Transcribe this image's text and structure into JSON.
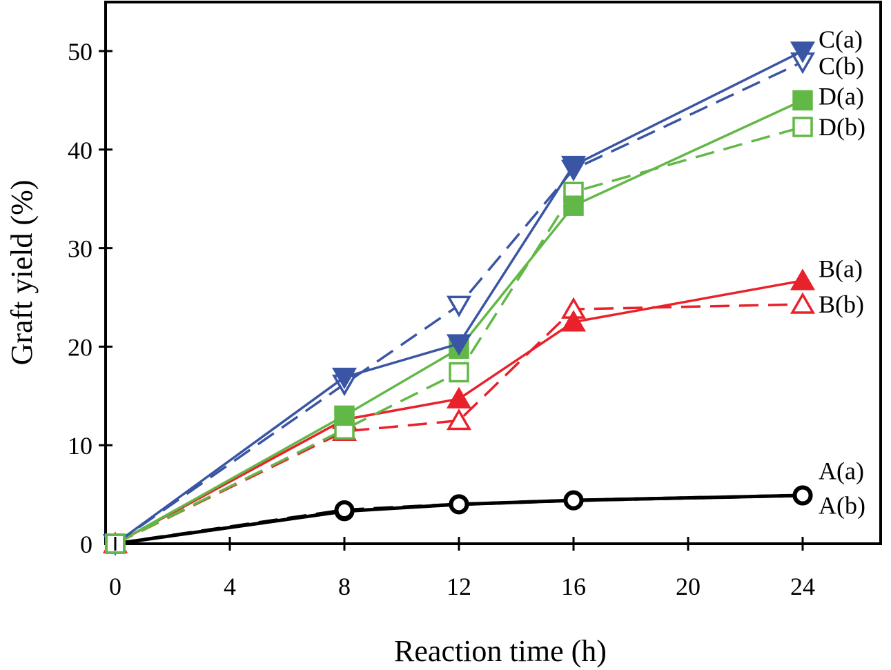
{
  "chart_data": {
    "type": "line",
    "title": "",
    "xlabel": "Reaction time (h)",
    "ylabel": "Graft yield (%)",
    "xlim": [
      -1,
      26.5
    ],
    "ylim": [
      0,
      55
    ],
    "xticks": [
      0,
      4,
      8,
      12,
      16,
      20,
      24
    ],
    "yticks": [
      0,
      10,
      20,
      30,
      40,
      50
    ],
    "grid": false,
    "legend": "inline labels at right end of each series",
    "x": [
      0,
      8,
      12,
      16,
      24
    ],
    "series": [
      {
        "name": "C(a)",
        "color": "#3a55a4",
        "dash": "solid",
        "marker": "triangle-down",
        "filled": true,
        "values": [
          0,
          16.9,
          20.3,
          38.4,
          50.0
        ]
      },
      {
        "name": "C(b)",
        "color": "#3a55a4",
        "dash": "dashed",
        "marker": "triangle-down",
        "filled": false,
        "values": [
          0,
          16.2,
          24.2,
          38.0,
          48.9
        ]
      },
      {
        "name": "D(a)",
        "color": "#62b847",
        "dash": "solid",
        "marker": "square",
        "filled": true,
        "values": [
          0,
          13.0,
          19.8,
          34.3,
          45.0
        ]
      },
      {
        "name": "D(b)",
        "color": "#62b847",
        "dash": "dashed",
        "marker": "square",
        "filled": false,
        "values": [
          0,
          11.6,
          17.4,
          35.7,
          42.3
        ]
      },
      {
        "name": "B(a)",
        "color": "#e8212a",
        "dash": "solid",
        "marker": "triangle-up",
        "filled": true,
        "values": [
          0,
          12.6,
          14.7,
          22.5,
          26.7
        ]
      },
      {
        "name": "B(b)",
        "color": "#e8212a",
        "dash": "dashed",
        "marker": "triangle-up",
        "filled": false,
        "values": [
          0,
          11.4,
          12.5,
          23.8,
          24.3
        ]
      },
      {
        "name": "A(a)",
        "color": "#000000",
        "dash": "solid",
        "marker": "circle",
        "filled": true,
        "values": [
          0,
          3.3,
          4.0,
          4.4,
          4.9
        ]
      },
      {
        "name": "A(b)",
        "color": "#000000",
        "dash": "dashed",
        "marker": "circle",
        "filled": false,
        "values": [
          0,
          3.4,
          4.0,
          4.4,
          4.9
        ]
      }
    ],
    "labels": [
      {
        "text": "C(a)",
        "y": 51.2
      },
      {
        "text": "C(b)",
        "y": 48.5
      },
      {
        "text": "D(a)",
        "y": 45.4
      },
      {
        "text": "D(b)",
        "y": 42.3
      },
      {
        "text": "B(a)",
        "y": 27.9
      },
      {
        "text": "B(b)",
        "y": 24.3
      },
      {
        "text": "A(a)",
        "y": 7.4
      },
      {
        "text": "A(b)",
        "y": 3.9
      }
    ]
  }
}
